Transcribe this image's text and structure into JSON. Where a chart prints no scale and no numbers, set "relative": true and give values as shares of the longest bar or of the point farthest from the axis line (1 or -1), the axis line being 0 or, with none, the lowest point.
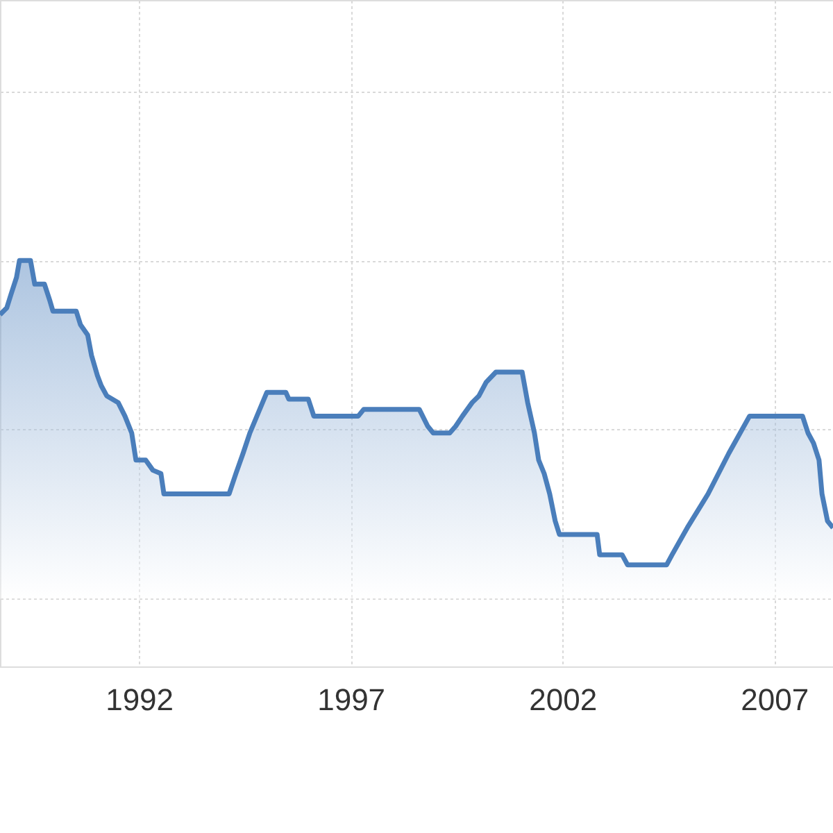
{
  "chart_data": {
    "type": "area",
    "relative": true,
    "grid": true,
    "marker": "none",
    "line_style": "solid",
    "tick_labels": "x",
    "xlim": [
      1988.72,
      2008.39
    ],
    "xticks": [
      1992,
      1997,
      2002,
      2007
    ],
    "x": [
      1988.72,
      1988.88,
      1988.98,
      1989.11,
      1989.18,
      1989.44,
      1989.54,
      1989.77,
      1989.9,
      1989.97,
      1990.52,
      1990.62,
      1990.79,
      1990.88,
      1991.02,
      1991.11,
      1991.24,
      1991.51,
      1991.67,
      1991.83,
      1991.93,
      1992.16,
      1992.33,
      1992.52,
      1992.59,
      1994.13,
      1994.29,
      1994.46,
      1994.62,
      1994.82,
      1995.02,
      1995.47,
      1995.54,
      1996.0,
      1996.13,
      1997.18,
      1997.31,
      1998.62,
      1998.82,
      1998.95,
      1999.34,
      1999.48,
      1999.64,
      1999.87,
      2000.03,
      2000.2,
      2000.43,
      2001.05,
      2001.18,
      2001.34,
      2001.44,
      2001.57,
      2001.7,
      2001.83,
      2001.93,
      2002.82,
      2002.88,
      2003.41,
      2003.54,
      2004.46,
      2004.59,
      2004.95,
      2005.44,
      2005.93,
      2006.42,
      2007.67,
      2007.8,
      2007.93,
      2008.06,
      2008.13,
      2008.26,
      2008.39
    ],
    "series": [
      {
        "color": "#4a7ebb",
        "values": [
          0.84,
          0.86,
          0.9,
          0.95,
          1.0,
          1.0,
          0.93,
          0.93,
          0.88,
          0.85,
          0.85,
          0.81,
          0.78,
          0.72,
          0.66,
          0.63,
          0.6,
          0.58,
          0.54,
          0.49,
          0.41,
          0.41,
          0.38,
          0.37,
          0.31,
          0.31,
          0.37,
          0.43,
          0.49,
          0.55,
          0.61,
          0.61,
          0.59,
          0.59,
          0.54,
          0.54,
          0.56,
          0.56,
          0.51,
          0.49,
          0.49,
          0.51,
          0.54,
          0.58,
          0.6,
          0.64,
          0.67,
          0.67,
          0.58,
          0.49,
          0.41,
          0.37,
          0.31,
          0.23,
          0.19,
          0.19,
          0.13,
          0.13,
          0.1,
          0.1,
          0.13,
          0.21,
          0.31,
          0.43,
          0.54,
          0.54,
          0.49,
          0.46,
          0.41,
          0.31,
          0.23,
          0.21
        ]
      }
    ]
  }
}
